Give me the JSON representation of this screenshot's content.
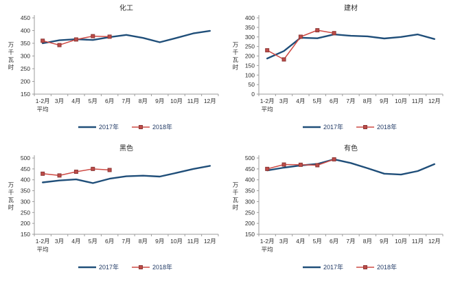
{
  "style": {
    "background": "#FFFFFF",
    "series1_color": "#1F4E79",
    "series2_color": "#CE4A44",
    "marker_fill": "#BE4B48",
    "marker_stroke": "#8C3836",
    "axis_color": "#9B9B9B",
    "tick_text_color": "#2B2B2B",
    "title_color": "#2B2B2B",
    "legend_text_color": "#1F3864"
  },
  "ylabel_vertical": "万千瓦时",
  "x_first_label_line2": "平均",
  "legend": {
    "series1": "2017年",
    "series2": "2018年"
  },
  "chart_data": [
    {
      "type": "line",
      "title": "化工",
      "xlabel": "",
      "ylabel": "万千瓦时",
      "categories": [
        "1-2月",
        "3月",
        "4月",
        "5月",
        "6月",
        "7月",
        "8月",
        "9月",
        "10月",
        "11月",
        "12月"
      ],
      "ylim": [
        150,
        450
      ],
      "ytick_step": 50,
      "grid": false,
      "legend_position": "bottom",
      "series": [
        {
          "name": "2017年",
          "color_key": "series1",
          "marker": "none",
          "values": [
            350,
            362,
            366,
            363,
            374,
            383,
            371,
            354,
            371,
            389,
            399
          ]
        },
        {
          "name": "2018年",
          "color_key": "series2",
          "marker": "square",
          "values": [
            360,
            343,
            365,
            378,
            376
          ]
        }
      ]
    },
    {
      "type": "line",
      "title": "建材",
      "xlabel": "",
      "ylabel": "万千瓦时",
      "categories": [
        "1-2月",
        "3月",
        "4月",
        "5月",
        "6月",
        "7月",
        "8月",
        "9月",
        "10月",
        "11月",
        "12月"
      ],
      "ylim": [
        0,
        400
      ],
      "ytick_step": 50,
      "grid": false,
      "legend_position": "bottom",
      "series": [
        {
          "name": "2017年",
          "color_key": "series1",
          "marker": "none",
          "values": [
            187,
            226,
            296,
            293,
            313,
            306,
            303,
            292,
            300,
            313,
            289
          ]
        },
        {
          "name": "2018年",
          "color_key": "series2",
          "marker": "square",
          "values": [
            230,
            182,
            301,
            335,
            320
          ]
        }
      ]
    },
    {
      "type": "line",
      "title": "黑色",
      "xlabel": "",
      "ylabel": "万千瓦时",
      "categories": [
        "1-2月",
        "3月",
        "4月",
        "5月",
        "6月",
        "7月",
        "8月",
        "9月",
        "10月",
        "11月",
        "12月"
      ],
      "ylim": [
        150,
        500
      ],
      "ytick_step": 50,
      "grid": false,
      "legend_position": "bottom",
      "series": [
        {
          "name": "2017年",
          "color_key": "series1",
          "marker": "none",
          "values": [
            388,
            397,
            402,
            385,
            405,
            416,
            419,
            415,
            432,
            450,
            464
          ]
        },
        {
          "name": "2018年",
          "color_key": "series2",
          "marker": "square",
          "values": [
            428,
            420,
            437,
            450,
            445
          ]
        }
      ]
    },
    {
      "type": "line",
      "title": "有色",
      "xlabel": "",
      "ylabel": "万千瓦时",
      "categories": [
        "1-2月",
        "3月",
        "4月",
        "5月",
        "6月",
        "7月",
        "8月",
        "9月",
        "10月",
        "11月",
        "12月"
      ],
      "ylim": [
        150,
        500
      ],
      "ytick_step": 50,
      "grid": false,
      "legend_position": "bottom",
      "series": [
        {
          "name": "2017年",
          "color_key": "series1",
          "marker": "none",
          "values": [
            443,
            456,
            466,
            473,
            494,
            477,
            453,
            428,
            424,
            440,
            472
          ]
        },
        {
          "name": "2018年",
          "color_key": "series2",
          "marker": "square",
          "values": [
            450,
            470,
            469,
            467,
            494
          ]
        }
      ]
    }
  ]
}
